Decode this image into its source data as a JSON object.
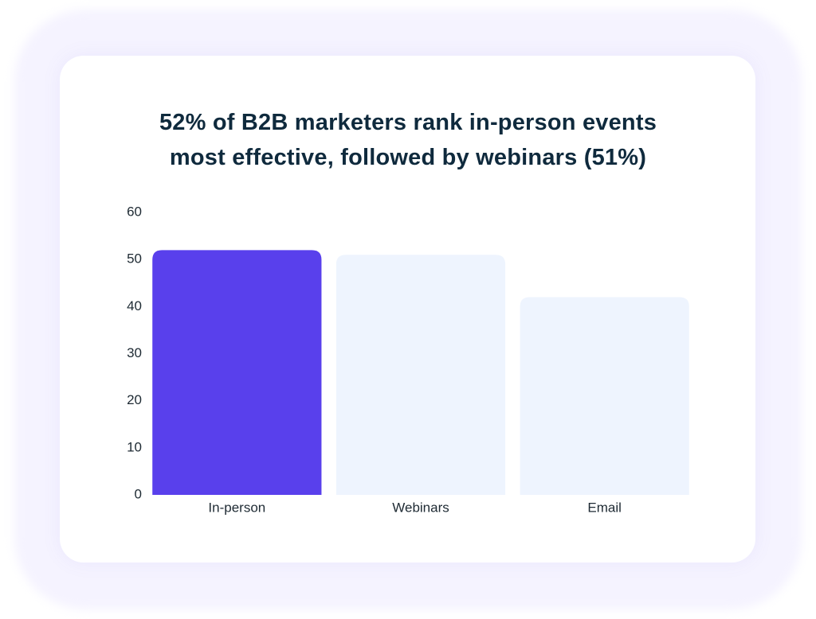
{
  "chart_data": {
    "type": "bar",
    "title": "52% of B2B marketers rank in-person events most effective, followed by webinars (51%)",
    "categories": [
      "In-person",
      "Webinars",
      "Email"
    ],
    "values": [
      52,
      51,
      42
    ],
    "colors": [
      "#5940ec",
      "#eef4fe",
      "#eef4fe"
    ],
    "ylim": [
      0,
      60
    ],
    "yticks": [
      0,
      10,
      20,
      30,
      40,
      50,
      60
    ],
    "grid": false
  }
}
